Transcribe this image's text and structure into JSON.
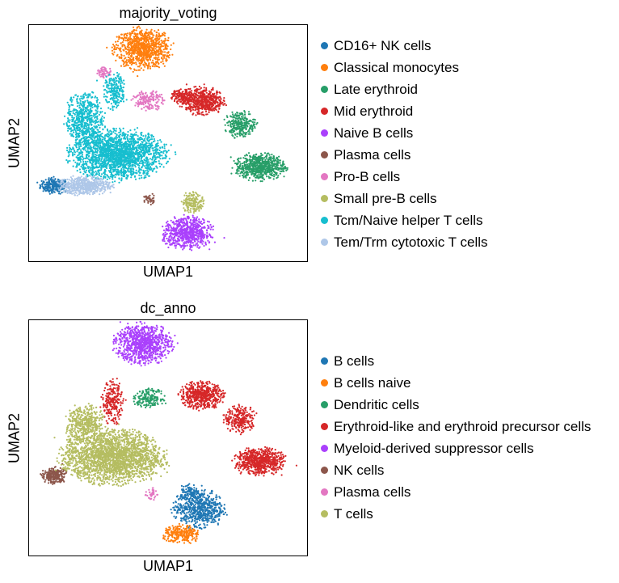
{
  "chart_data": [
    {
      "type": "scatter",
      "title": "majority_voting",
      "xlabel": "UMAP1",
      "ylabel": "UMAP2",
      "ticks": "none",
      "legend_position": "right",
      "series": [
        {
          "name": "CD16+ NK cells",
          "color": "#1f77b4",
          "clusters": [
            {
              "x": 0.09,
              "y": 0.32,
              "rx": 0.045,
              "ry": 0.03,
              "n": 260
            }
          ]
        },
        {
          "name": "Classical monocytes",
          "color": "#ff7f0e",
          "clusters": [
            {
              "x": 0.41,
              "y": 0.9,
              "rx": 0.09,
              "ry": 0.075,
              "n": 900
            }
          ]
        },
        {
          "name": "Late erythroid",
          "color": "#279e68",
          "clusters": [
            {
              "x": 0.83,
              "y": 0.4,
              "rx": 0.08,
              "ry": 0.05,
              "n": 650
            },
            {
              "x": 0.76,
              "y": 0.58,
              "rx": 0.05,
              "ry": 0.05,
              "n": 260
            }
          ]
        },
        {
          "name": "Mid erythroid",
          "color": "#d62728",
          "clusters": [
            {
              "x": 0.62,
              "y": 0.68,
              "rx": 0.07,
              "ry": 0.05,
              "n": 560
            },
            {
              "x": 0.55,
              "y": 0.7,
              "rx": 0.035,
              "ry": 0.025,
              "n": 120
            }
          ]
        },
        {
          "name": "Naive B cells",
          "color": "#aa40fc",
          "clusters": [
            {
              "x": 0.57,
              "y": 0.12,
              "rx": 0.08,
              "ry": 0.06,
              "n": 700
            }
          ]
        },
        {
          "name": "Plasma cells",
          "color": "#8c564b",
          "clusters": [
            {
              "x": 0.43,
              "y": 0.26,
              "rx": 0.02,
              "ry": 0.025,
              "n": 40
            }
          ]
        },
        {
          "name": "Pro-B cells",
          "color": "#e377c2",
          "clusters": [
            {
              "x": 0.43,
              "y": 0.68,
              "rx": 0.05,
              "ry": 0.035,
              "n": 170
            },
            {
              "x": 0.27,
              "y": 0.8,
              "rx": 0.025,
              "ry": 0.02,
              "n": 60
            }
          ]
        },
        {
          "name": "Small pre-B cells",
          "color": "#b5bd61",
          "clusters": [
            {
              "x": 0.59,
              "y": 0.25,
              "rx": 0.035,
              "ry": 0.04,
              "n": 170
            }
          ]
        },
        {
          "name": "Tcm/Naive helper T cells",
          "color": "#17becf",
          "clusters": [
            {
              "x": 0.32,
              "y": 0.45,
              "rx": 0.15,
              "ry": 0.09,
              "n": 2000
            },
            {
              "x": 0.2,
              "y": 0.6,
              "rx": 0.06,
              "ry": 0.1,
              "n": 600
            },
            {
              "x": 0.31,
              "y": 0.72,
              "rx": 0.035,
              "ry": 0.07,
              "n": 220
            }
          ]
        },
        {
          "name": "Tem/Trm cytotoxic T cells",
          "color": "#aec7e8",
          "clusters": [
            {
              "x": 0.2,
              "y": 0.32,
              "rx": 0.085,
              "ry": 0.035,
              "n": 520
            }
          ]
        }
      ]
    },
    {
      "type": "scatter",
      "title": "dc_anno",
      "xlabel": "UMAP1",
      "ylabel": "UMAP2",
      "ticks": "none",
      "legend_position": "right",
      "series": [
        {
          "name": "B cells",
          "color": "#1f77b4",
          "clusters": [
            {
              "x": 0.61,
              "y": 0.2,
              "rx": 0.08,
              "ry": 0.07,
              "n": 620
            },
            {
              "x": 0.58,
              "y": 0.27,
              "rx": 0.03,
              "ry": 0.03,
              "n": 80
            }
          ]
        },
        {
          "name": "B cells naive",
          "color": "#ff7f0e",
          "clusters": [
            {
              "x": 0.55,
              "y": 0.09,
              "rx": 0.06,
              "ry": 0.035,
              "n": 260
            }
          ]
        },
        {
          "name": "Dendritic cells",
          "color": "#279e68",
          "clusters": [
            {
              "x": 0.43,
              "y": 0.67,
              "rx": 0.05,
              "ry": 0.035,
              "n": 180
            }
          ]
        },
        {
          "name": "Erythroid-like and erythroid precursor cells",
          "color": "#d62728",
          "clusters": [
            {
              "x": 0.83,
              "y": 0.4,
              "rx": 0.08,
              "ry": 0.05,
              "n": 650
            },
            {
              "x": 0.62,
              "y": 0.68,
              "rx": 0.07,
              "ry": 0.05,
              "n": 560
            },
            {
              "x": 0.76,
              "y": 0.58,
              "rx": 0.05,
              "ry": 0.05,
              "n": 260
            },
            {
              "x": 0.3,
              "y": 0.65,
              "rx": 0.035,
              "ry": 0.08,
              "n": 240
            }
          ]
        },
        {
          "name": "Myeloid-derived suppressor cells",
          "color": "#aa40fc",
          "clusters": [
            {
              "x": 0.41,
              "y": 0.9,
              "rx": 0.09,
              "ry": 0.075,
              "n": 900
            }
          ]
        },
        {
          "name": "NK cells",
          "color": "#8c564b",
          "clusters": [
            {
              "x": 0.09,
              "y": 0.34,
              "rx": 0.04,
              "ry": 0.03,
              "n": 240
            }
          ]
        },
        {
          "name": "Plasma cells",
          "color": "#e377c2",
          "clusters": [
            {
              "x": 0.44,
              "y": 0.26,
              "rx": 0.02,
              "ry": 0.025,
              "n": 40
            }
          ]
        },
        {
          "name": "T cells",
          "color": "#b5bd61",
          "clusters": [
            {
              "x": 0.3,
              "y": 0.42,
              "rx": 0.16,
              "ry": 0.1,
              "n": 2300
            },
            {
              "x": 0.2,
              "y": 0.56,
              "rx": 0.06,
              "ry": 0.07,
              "n": 420
            }
          ]
        }
      ]
    }
  ]
}
